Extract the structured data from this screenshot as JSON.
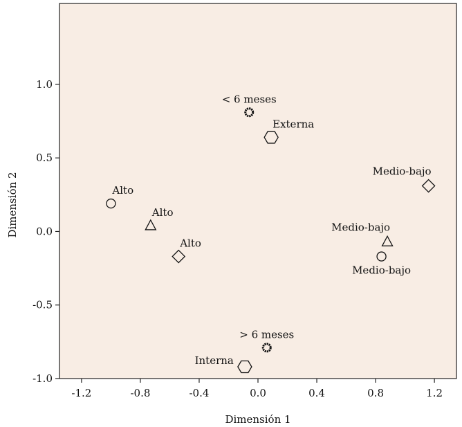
{
  "chart_data": {
    "type": "scatter",
    "xlabel": "Dimensión 1",
    "ylabel": "Dimensión 2",
    "xlim": [
      -1.35,
      1.35
    ],
    "ylim": [
      -1.0,
      1.55
    ],
    "xticks": [
      "-1.2",
      "-0.8",
      "-0.4",
      "0.0",
      "0.4",
      "0.8",
      "1.2"
    ],
    "xtick_values": [
      -1.2,
      -0.8,
      -0.4,
      0.0,
      0.4,
      0.8,
      1.2
    ],
    "yticks": [
      "-1.0",
      "-0.5",
      "0.0",
      "0.5",
      "1.0"
    ],
    "ytick_values": [
      -1.0,
      -0.5,
      0.0,
      0.5,
      1.0
    ],
    "background": "#f8ede4",
    "grid": false,
    "points": [
      {
        "label": "< 6 meses",
        "x": -0.06,
        "y": 0.81,
        "marker": "ring",
        "label_pos": "above"
      },
      {
        "label": "Externa",
        "x": 0.09,
        "y": 0.64,
        "marker": "hexagon",
        "label_pos": "above-right"
      },
      {
        "label": "Medio-bajo",
        "x": 1.16,
        "y": 0.31,
        "marker": "diamond",
        "label_pos": "above-left"
      },
      {
        "label": "Alto",
        "x": -1.0,
        "y": 0.19,
        "marker": "circle",
        "label_pos": "above-right"
      },
      {
        "label": "Alto",
        "x": -0.73,
        "y": 0.04,
        "marker": "triangle",
        "label_pos": "above-right"
      },
      {
        "label": "Alto",
        "x": -0.54,
        "y": -0.17,
        "marker": "diamond",
        "label_pos": "above-right"
      },
      {
        "label": "Medio-bajo",
        "x": 0.88,
        "y": -0.07,
        "marker": "triangle",
        "label_pos": "above-left"
      },
      {
        "label": "Medio-bajo",
        "x": 0.84,
        "y": -0.17,
        "marker": "circle",
        "label_pos": "below"
      },
      {
        "label": "> 6 meses",
        "x": 0.06,
        "y": -0.79,
        "marker": "ring",
        "label_pos": "above"
      },
      {
        "label": "Interna",
        "x": -0.09,
        "y": -0.92,
        "marker": "hexagon",
        "label_pos": "left"
      }
    ]
  }
}
